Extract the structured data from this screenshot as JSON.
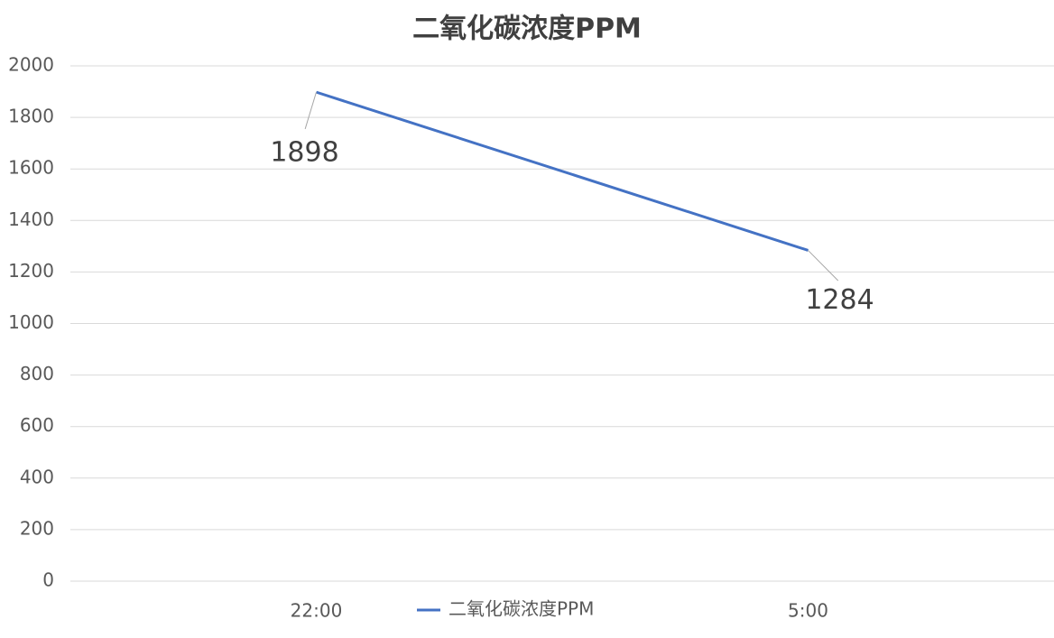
{
  "chart_data": {
    "type": "line",
    "title": "二氧化碳浓度PPM",
    "categories": [
      "22:00",
      "5:00"
    ],
    "series": [
      {
        "name": "二氧化碳浓度PPM",
        "color": "#4472c4",
        "values": [
          1898,
          1284
        ]
      }
    ],
    "ylim": [
      0,
      2000
    ],
    "yticks": [
      0,
      200,
      400,
      600,
      800,
      1000,
      1200,
      1400,
      1600,
      1800,
      2000
    ],
    "grid": true,
    "legend": "bottom"
  }
}
